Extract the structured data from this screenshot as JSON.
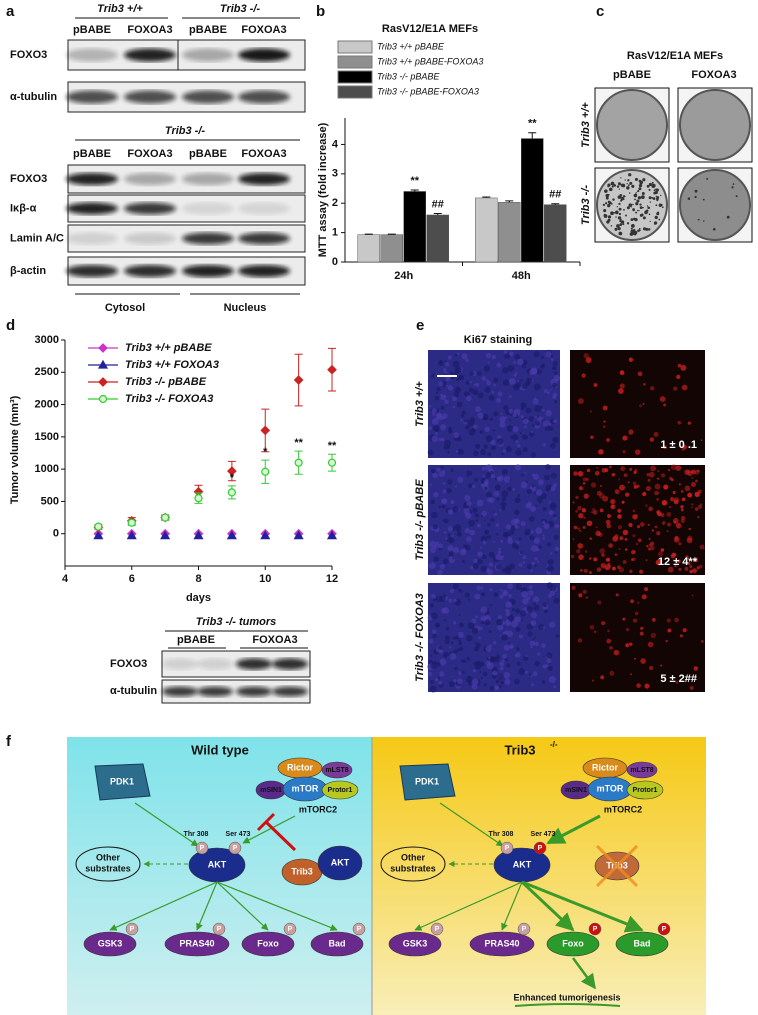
{
  "panels": {
    "a": {
      "label": "a",
      "top_blot": {
        "genotypes": [
          "Trib3 +/+",
          "Trib3 -/-"
        ],
        "lanes": [
          "pBABE",
          "FOXOA3",
          "pBABE",
          "FOXOA3"
        ],
        "rows": [
          "FOXO3",
          "α-tubulin"
        ]
      },
      "bottom_blot": {
        "genotype": "Trib3 -/-",
        "lanes": [
          "pBABE",
          "FOXOA3",
          "pBABE",
          "FOXOA3"
        ],
        "rows": [
          "FOXO3",
          "Iκβ-α",
          "Lamin A/C",
          "β-actin"
        ],
        "fractions": [
          "Cytosol",
          "Nucleus"
        ]
      }
    },
    "c": {
      "label": "c",
      "title": "RasV12/E1A MEFs",
      "columns": [
        "pBABE",
        "FOXOA3"
      ],
      "rows": [
        "Trib3 +/+",
        "Trib3 -/-"
      ]
    },
    "d_blot": {
      "title": "Trib3 -/- tumors",
      "lanes": [
        "pBABE",
        "FOXOA3"
      ],
      "rows": [
        "FOXO3",
        "α-tubulin"
      ]
    },
    "e": {
      "label": "e",
      "title": "Ki67 staining",
      "rows": [
        "Trib3 +/+",
        "Trib3 -/- pBABE",
        "Trib3 -/- FOXOA3"
      ],
      "quantification": [
        "1 ± 0 .1",
        "12 ± 4**",
        "5 ± 2##"
      ]
    },
    "f": {
      "label": "f",
      "titles": [
        "Wild type",
        "Trib3"
      ],
      "title_sup": "-/-",
      "phospho": "P",
      "nodes": {
        "pdk1": "PDK1",
        "rictor": "Rictor",
        "mlst8": "mLST8",
        "msin1": "mSIN1",
        "mtor": "mTOR",
        "protor1": "Protor1",
        "mtorc2": "mTORC2",
        "thr308": "Thr 308",
        "ser473": "Ser 473",
        "akt": "AKT",
        "trib3": "Trib3",
        "other_substrates": [
          "Other",
          "substrates"
        ],
        "gsk3": "GSK3",
        "pras40": "PRAS40",
        "foxo": "Foxo",
        "bad": "Bad"
      },
      "outcome": "Enhanced tumorigenesis"
    }
  },
  "chart_data": [
    {
      "panel": "b",
      "type": "bar",
      "title": "RasV12/E1A MEFs",
      "y_label": "MTT assay (fold increase)",
      "categories": [
        "24h",
        "48h"
      ],
      "series": [
        {
          "name": "Trib3 +/+ pBABE",
          "color": "#c8c8c8",
          "values": [
            0.93,
            2.18
          ],
          "errors": [
            0.02,
            0.03
          ]
        },
        {
          "name": "Trib3 +/+ pBABE-FOXOA3",
          "color": "#8f8f8f",
          "values": [
            0.93,
            2.03
          ],
          "errors": [
            0.02,
            0.05
          ]
        },
        {
          "name": "Trib3 -/- pBABE",
          "color": "#000000",
          "values": [
            2.4,
            4.2
          ],
          "errors": [
            0.05,
            0.2
          ],
          "annotations": [
            "**",
            "**"
          ]
        },
        {
          "name": "Trib3 -/- pBABE-FOXOA3",
          "color": "#4d4d4d",
          "values": [
            1.6,
            1.95
          ],
          "errors": [
            0.05,
            0.03
          ],
          "annotations": [
            "##",
            "##"
          ]
        }
      ],
      "ylim": [
        0,
        4.9
      ],
      "yticks": [
        0,
        1,
        2,
        3,
        4
      ]
    },
    {
      "panel": "d",
      "type": "line",
      "y_label": "Tumor volume (mm³)",
      "x_label": "days",
      "x": [
        5,
        6,
        7,
        8,
        9,
        10,
        11,
        12
      ],
      "series": [
        {
          "name": "Trib3 +/+ pBABE",
          "color": "#cc33cc",
          "marker": "diamond",
          "values": [
            0,
            0,
            0,
            0,
            0,
            0,
            0,
            0
          ]
        },
        {
          "name": "Trib3 +/+ FOXOA3",
          "color": "#22229a",
          "marker": "triangle",
          "values": [
            -30,
            -30,
            -30,
            -30,
            -30,
            -30,
            -30,
            -30
          ]
        },
        {
          "name": "Trib3 -/- pBABE",
          "color": "#cc2222",
          "marker": "diamond",
          "values": [
            100,
            200,
            250,
            650,
            970,
            1600,
            2380,
            2540
          ],
          "errors": [
            30,
            50,
            40,
            100,
            150,
            330,
            400,
            330
          ]
        },
        {
          "name": "Trib3 -/- FOXOA3",
          "color": "#33cc33",
          "marker": "circle",
          "values": [
            110,
            170,
            250,
            550,
            640,
            960,
            1100,
            1100
          ],
          "errors": [
            30,
            40,
            30,
            80,
            100,
            180,
            180,
            130
          ],
          "annotations": [
            null,
            null,
            null,
            null,
            "*",
            "*",
            "**",
            "**"
          ]
        }
      ],
      "xlim": [
        4,
        12
      ],
      "xticks": [
        4,
        6,
        8,
        10,
        12
      ],
      "ylim": [
        -500,
        3000
      ],
      "yticks": [
        0,
        500,
        1000,
        1500,
        2000,
        2500,
        3000
      ]
    }
  ]
}
